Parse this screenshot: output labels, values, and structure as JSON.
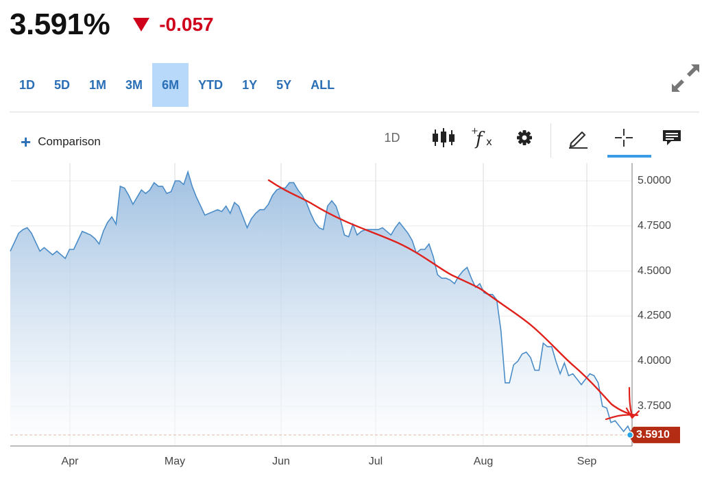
{
  "quote": {
    "price": "3.591%",
    "change": "-0.057",
    "direction_icon": "triangle-down-icon",
    "change_color": "#d0021b"
  },
  "ranges": [
    {
      "label": "1D",
      "active": false
    },
    {
      "label": "5D",
      "active": false
    },
    {
      "label": "1M",
      "active": false
    },
    {
      "label": "3M",
      "active": false
    },
    {
      "label": "6M",
      "active": true
    },
    {
      "label": "YTD",
      "active": false
    },
    {
      "label": "1Y",
      "active": false
    },
    {
      "label": "5Y",
      "active": false
    },
    {
      "label": "ALL",
      "active": false
    }
  ],
  "toolbar": {
    "comparison_label": "Comparison",
    "interval_label": "1D",
    "icons": [
      "plus-icon",
      "candlestick-icon",
      "function-icon",
      "gear-icon",
      "pencil-icon",
      "crosshair-icon",
      "comment-icon",
      "expand-icon"
    ]
  },
  "colors": {
    "accent": "#2a6fb5",
    "active_range_bg": "#b9d9fb",
    "line": "#4a8cc7",
    "annotation": "#e0201a",
    "last_value_bg": "#b52c15"
  },
  "chart_data": {
    "type": "area",
    "title": "",
    "xlabel": "",
    "ylabel": "",
    "x_ticks": [
      "Apr",
      "May",
      "Jun",
      "Jul",
      "Aug",
      "Sep"
    ],
    "y_ticks": [
      "5.0000",
      "4.7500",
      "4.5000",
      "4.2500",
      "4.0000",
      "3.7500"
    ],
    "ylim": [
      3.54,
      5.06
    ],
    "last_value": 3.591,
    "last_value_label": "3.5910",
    "grid": true,
    "series": [
      {
        "values": [
          4.61,
          4.66,
          4.71,
          4.73,
          4.74,
          4.71,
          4.66,
          4.61,
          4.63,
          4.61,
          4.59,
          4.61,
          4.59,
          4.57,
          4.62,
          4.62,
          4.67,
          4.72,
          4.71,
          4.7,
          4.68,
          4.65,
          4.72,
          4.77,
          4.8,
          4.76,
          4.97,
          4.96,
          4.92,
          4.87,
          4.91,
          4.95,
          4.93,
          4.95,
          4.99,
          4.97,
          4.97,
          4.93,
          4.94,
          5.0,
          5.0,
          4.98,
          5.05,
          4.97,
          4.91,
          4.86,
          4.81,
          4.82,
          4.83,
          4.84,
          4.83,
          4.86,
          4.82,
          4.88,
          4.86,
          4.8,
          4.74,
          4.79,
          4.82,
          4.84,
          4.84,
          4.87,
          4.92,
          4.95,
          4.96,
          4.96,
          4.99,
          4.99,
          4.95,
          4.92,
          4.88,
          4.82,
          4.77,
          4.74,
          4.73,
          4.86,
          4.89,
          4.86,
          4.79,
          4.7,
          4.69,
          4.76,
          4.7,
          4.72,
          4.73,
          4.73,
          4.73,
          4.73,
          4.74,
          4.72,
          4.7,
          4.74,
          4.77,
          4.74,
          4.71,
          4.67,
          4.6,
          4.62,
          4.62,
          4.65,
          4.58,
          4.48,
          4.46,
          4.46,
          4.45,
          4.43,
          4.47,
          4.5,
          4.52,
          4.46,
          4.41,
          4.43,
          4.38,
          4.37,
          4.37,
          4.34,
          4.17,
          3.88,
          3.88,
          3.98,
          4.0,
          4.04,
          4.05,
          4.02,
          3.95,
          3.95,
          4.1,
          4.08,
          4.08,
          4.0,
          3.93,
          3.99,
          3.92,
          3.93,
          3.9,
          3.87,
          3.9,
          3.93,
          3.92,
          3.88,
          3.75,
          3.74,
          3.66,
          3.67,
          3.64,
          3.61,
          3.64,
          3.59
        ]
      }
    ],
    "annotations": [
      {
        "type": "hand-drawn-trend-line",
        "color": "#e0201a"
      }
    ]
  }
}
